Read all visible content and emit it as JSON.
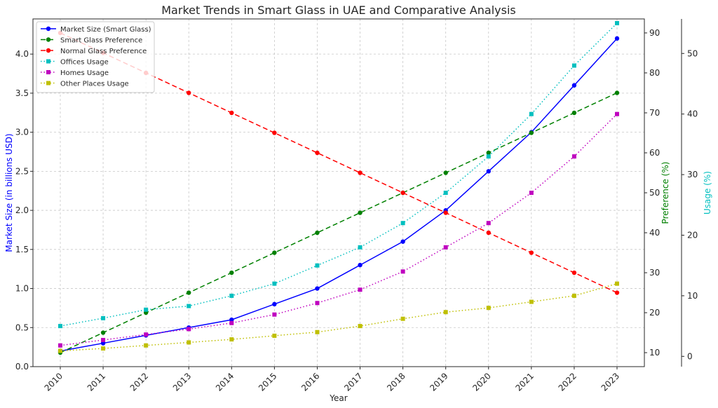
{
  "chart_data": {
    "type": "line",
    "title": "Market Trends in Smart Glass in UAE and Comparative Analysis",
    "xlabel": "Year",
    "ylabel_left": "Market Size (in billions USD)",
    "ylabel_pref": "Preference (%)",
    "ylabel_usage": "Usage (%)",
    "categories": [
      "2010",
      "2011",
      "2012",
      "2013",
      "2014",
      "2015",
      "2016",
      "2017",
      "2018",
      "2019",
      "2020",
      "2021",
      "2022",
      "2023"
    ],
    "grid": true,
    "legend_position": "top-left",
    "axes": {
      "market": {
        "range": [
          0,
          4.45
        ],
        "ticks": [
          "0.0",
          "0.5",
          "1.0",
          "1.5",
          "2.0",
          "2.5",
          "3.0",
          "3.5",
          "4.0"
        ],
        "label_color": "#0000ff"
      },
      "pref": {
        "range": [
          6.5,
          93.5
        ],
        "ticks": [
          "10",
          "20",
          "30",
          "40",
          "50",
          "60",
          "70",
          "80",
          "90"
        ],
        "label_color": "#008000"
      },
      "usage": {
        "range": [
          -1.7,
          55.7
        ],
        "ticks": [
          "0",
          "10",
          "20",
          "30",
          "40",
          "50"
        ],
        "label_color": "#00bfbf"
      }
    },
    "series": [
      {
        "name": "Market Size (Smart Glass)",
        "axis": "market",
        "color": "#0000ff",
        "dash": "",
        "marker": "circle",
        "values": [
          0.2,
          0.3,
          0.4,
          0.5,
          0.6,
          0.8,
          1.0,
          1.3,
          1.6,
          2.0,
          2.5,
          3.0,
          3.6,
          4.2
        ]
      },
      {
        "name": "Smart Glass Preference",
        "axis": "pref",
        "color": "#008000",
        "dash": "7 4",
        "marker": "circle",
        "values": [
          10,
          15,
          20,
          25,
          30,
          35,
          40,
          45,
          50,
          55,
          60,
          65,
          70,
          75
        ]
      },
      {
        "name": "Normal Glass Preference",
        "axis": "pref",
        "color": "#ff0000",
        "dash": "7 4",
        "marker": "circle",
        "values": [
          90,
          85,
          80,
          75,
          70,
          65,
          60,
          55,
          50,
          45,
          40,
          35,
          30,
          25
        ]
      },
      {
        "name": "Offices Usage",
        "axis": "usage",
        "color": "#00bfbf",
        "dash": "1.5 3",
        "marker": "square",
        "values": [
          5,
          6.3,
          7.7,
          8.3,
          10,
          12,
          15,
          18,
          22,
          27,
          33,
          40,
          48,
          55
        ]
      },
      {
        "name": "Homes Usage",
        "axis": "usage",
        "color": "#bf00bf",
        "dash": "1.5 3",
        "marker": "square",
        "values": [
          1.8,
          2.7,
          3.6,
          4.5,
          5.5,
          6.9,
          8.8,
          11,
          14,
          18,
          22,
          27,
          33,
          40
        ]
      },
      {
        "name": "Other Places Usage",
        "axis": "usage",
        "color": "#bfbf00",
        "dash": "1.5 3",
        "marker": "square",
        "values": [
          0.9,
          1.3,
          1.8,
          2.3,
          2.8,
          3.4,
          4,
          5,
          6.2,
          7.3,
          8,
          9,
          10,
          12
        ]
      }
    ]
  }
}
